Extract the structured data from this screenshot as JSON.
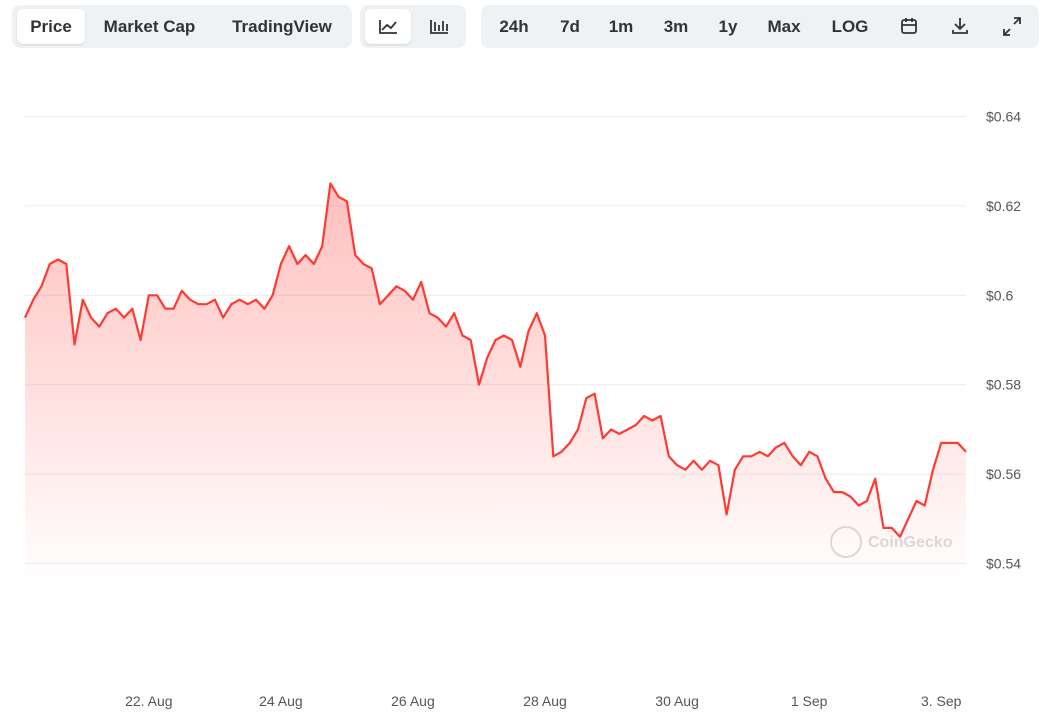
{
  "toolbar": {
    "tabs": [
      "Price",
      "Market Cap",
      "TradingView"
    ],
    "ranges": [
      "24h",
      "7d",
      "1m",
      "3m",
      "1y",
      "Max",
      "LOG"
    ]
  },
  "watermark": "CoinGecko",
  "chart_data": {
    "type": "line",
    "categories": [
      null,
      null,
      null,
      null,
      null,
      null,
      null,
      null,
      null,
      null,
      null,
      null,
      null,
      null,
      null,
      "22. Aug",
      null,
      null,
      null,
      null,
      null,
      null,
      null,
      null,
      null,
      null,
      null,
      null,
      null,
      null,
      null,
      "24 Aug",
      null,
      null,
      null,
      null,
      null,
      null,
      null,
      null,
      null,
      null,
      null,
      null,
      null,
      null,
      null,
      "26 Aug",
      null,
      null,
      null,
      null,
      null,
      null,
      null,
      null,
      null,
      null,
      null,
      null,
      null,
      null,
      null,
      "28 Aug",
      null,
      null,
      null,
      null,
      null,
      null,
      null,
      null,
      null,
      null,
      null,
      null,
      null,
      null,
      null,
      "30 Aug",
      null,
      null,
      null,
      null,
      null,
      null,
      null,
      null,
      null,
      null,
      null,
      null,
      null,
      null,
      null,
      "1 Sep",
      null,
      null,
      null,
      null,
      null,
      null,
      null,
      null,
      null,
      null,
      null,
      null,
      null,
      null,
      null,
      "3. Sep",
      null,
      null,
      null
    ],
    "series": [
      {
        "color": "#ff3a33",
        "values": [
          0.595,
          0.599,
          0.602,
          0.607,
          0.608,
          0.607,
          0.589,
          0.599,
          0.595,
          0.593,
          0.596,
          0.597,
          0.595,
          0.597,
          0.59,
          0.6,
          0.6,
          0.597,
          0.597,
          0.601,
          0.599,
          0.598,
          0.598,
          0.599,
          0.595,
          0.598,
          0.599,
          0.598,
          0.599,
          0.597,
          0.6,
          0.607,
          0.611,
          0.607,
          0.609,
          0.607,
          0.611,
          0.625,
          0.622,
          0.621,
          0.609,
          0.607,
          0.606,
          0.598,
          0.6,
          0.602,
          0.601,
          0.599,
          0.603,
          0.596,
          0.595,
          0.593,
          0.596,
          0.591,
          0.59,
          0.58,
          0.586,
          0.59,
          0.591,
          0.59,
          0.584,
          0.592,
          0.596,
          0.591,
          0.564,
          0.565,
          0.567,
          0.57,
          0.577,
          0.578,
          0.568,
          0.57,
          0.569,
          0.57,
          0.571,
          0.573,
          0.572,
          0.573,
          0.564,
          0.562,
          0.561,
          0.563,
          0.561,
          0.563,
          0.562,
          0.551,
          0.561,
          0.564,
          0.564,
          0.565,
          0.564,
          0.566,
          0.567,
          0.564,
          0.562,
          0.565,
          0.564,
          0.559,
          0.556,
          0.556,
          0.555,
          0.553,
          0.554,
          0.559,
          0.548,
          0.548,
          0.546,
          0.55,
          0.554,
          0.553,
          0.561,
          0.567,
          0.567,
          0.567,
          0.565
        ]
      }
    ],
    "ylim": [
      0.535,
      0.645
    ],
    "yticks": [
      {
        "value": 0.54,
        "label": "$0.54"
      },
      {
        "value": 0.56,
        "label": "$0.56"
      },
      {
        "value": 0.58,
        "label": "$0.58"
      },
      {
        "value": 0.6,
        "label": "$0.6"
      },
      {
        "value": 0.62,
        "label": "$0.62"
      },
      {
        "value": 0.64,
        "label": "$0.64"
      }
    ],
    "grid": true
  }
}
